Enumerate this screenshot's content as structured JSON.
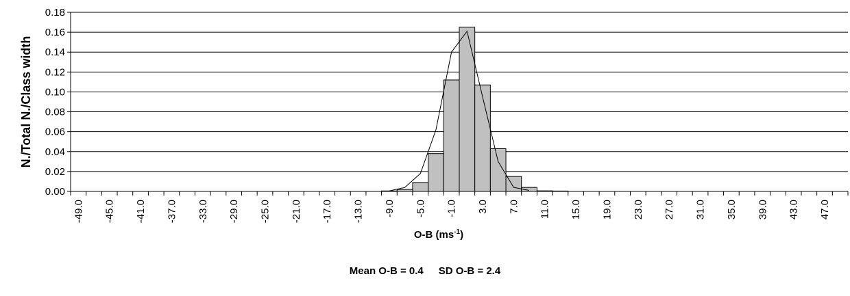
{
  "chart_data": {
    "type": "bar",
    "ylabel": "N./Total N./Class width",
    "xlabel_main": "O-B (ms",
    "xlabel_sup": "-1",
    "xlabel_tail": ")",
    "ylim": [
      0,
      0.18
    ],
    "y_ticks": [
      "0.00",
      "0.02",
      "0.04",
      "0.06",
      "0.08",
      "0.10",
      "0.12",
      "0.14",
      "0.16",
      "0.18"
    ],
    "x_tick_labels": [
      "-49.0",
      "-45.0",
      "-41.0",
      "-37.0",
      "-33.0",
      "-29.0",
      "-25.0",
      "-21.0",
      "-17.0",
      "-13.0",
      "-9.0",
      "-5.0",
      "-1.0",
      "3.0",
      "7.0",
      "11.0",
      "15.0",
      "19.0",
      "23.0",
      "27.0",
      "31.0",
      "35.0",
      "39.0",
      "43.0",
      "47.0"
    ],
    "class_width": 2,
    "bins_start": -50,
    "bins_end": 50,
    "series": [
      {
        "kind": "bars",
        "bins": [
          {
            "x": -9.0,
            "value": 0.0005
          },
          {
            "x": -7.0,
            "value": 0.002
          },
          {
            "x": -5.0,
            "value": 0.009
          },
          {
            "x": -3.0,
            "value": 0.038
          },
          {
            "x": -1.0,
            "value": 0.112
          },
          {
            "x": 1.0,
            "value": 0.165
          },
          {
            "x": 3.0,
            "value": 0.107
          },
          {
            "x": 5.0,
            "value": 0.043
          },
          {
            "x": 7.0,
            "value": 0.015
          },
          {
            "x": 9.0,
            "value": 0.004
          },
          {
            "x": 11.0,
            "value": 0.0006
          },
          {
            "x": 13.0,
            "value": 0.0004
          }
        ]
      },
      {
        "kind": "line",
        "points": [
          {
            "x": -9.0,
            "value": 0.0005
          },
          {
            "x": -7.0,
            "value": 0.004
          },
          {
            "x": -5.0,
            "value": 0.018
          },
          {
            "x": -3.0,
            "value": 0.062
          },
          {
            "x": -1.0,
            "value": 0.14
          },
          {
            "x": 1.0,
            "value": 0.161
          },
          {
            "x": 3.0,
            "value": 0.095
          },
          {
            "x": 5.0,
            "value": 0.03
          },
          {
            "x": 7.0,
            "value": 0.004
          },
          {
            "x": 9.0,
            "value": 0.001
          }
        ]
      }
    ],
    "grid": true,
    "bar_color": "#c0c0c0",
    "line_color": "#000000"
  },
  "stats": {
    "mean_text": "Mean O-B = 0.4",
    "sd_text": "SD O-B = 2.4"
  }
}
